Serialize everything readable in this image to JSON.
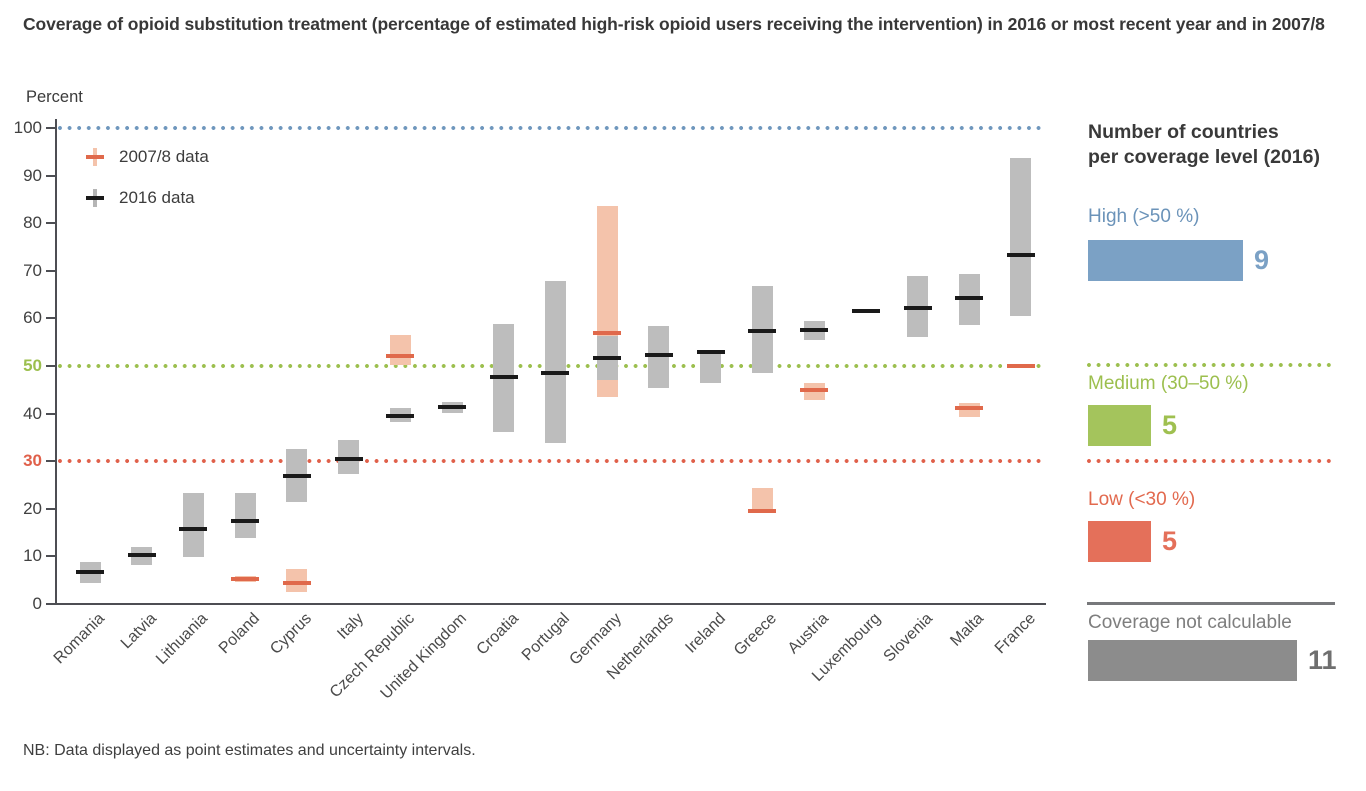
{
  "title": "Coverage of opioid substitution treatment (percentage of estimated high-risk opioid users receiving the intervention) in 2016 or most recent year and in 2007/8",
  "note": "NB: Data displayed as point estimates and uncertainty intervals.",
  "chart_data": {
    "type": "interval-point",
    "title": "Coverage of opioid substitution treatment (percentage of estimated high-risk opioid users receiving the intervention) in 2016 or most recent year and in 2007/8",
    "ylabel": "Percent",
    "xlabel": "",
    "ylim": [
      0,
      100
    ],
    "yticks": [
      0,
      10,
      20,
      30,
      40,
      50,
      60,
      70,
      80,
      90,
      100
    ],
    "ytick_special_colors": {
      "30": "#e0604a",
      "50": "#9cbf4e"
    },
    "grid": "off",
    "legend_position": "top-left",
    "reference_lines": [
      {
        "value": 100,
        "color": "#6f97bd",
        "style": "dotted"
      },
      {
        "value": 50,
        "color": "#9cbf4e",
        "style": "dotted"
      },
      {
        "value": 30,
        "color": "#e0604a",
        "style": "dotted"
      }
    ],
    "categories": [
      "Romania",
      "Latvia",
      "Lithuania",
      "Poland",
      "Cyprus",
      "Italy",
      "Czech Republic",
      "United Kingdom",
      "Croatia",
      "Portugal",
      "Germany",
      "Netherlands",
      "Ireland",
      "Greece",
      "Austria",
      "Luxembourg",
      "Slovenia",
      "Malta",
      "France"
    ],
    "series": [
      {
        "name": "2007/8 data",
        "interval_color": "#f4c3ab",
        "point_color": "#e0694b",
        "points": [
          null,
          null,
          null,
          {
            "est": 5.3,
            "low": 4.7,
            "high": 5.8
          },
          {
            "est": 4.5,
            "low": 2.6,
            "high": 7.4
          },
          null,
          {
            "est": 52.0,
            "low": 50.2,
            "high": 56.6
          },
          null,
          null,
          null,
          {
            "est": 56.9,
            "low": 43.4,
            "high": 83.6
          },
          null,
          null,
          {
            "est": 19.6,
            "low": 19.3,
            "high": 24.4
          },
          {
            "est": 44.9,
            "low": 42.9,
            "high": 46.4
          },
          null,
          null,
          {
            "est": 41.2,
            "low": 39.2,
            "high": 42.2
          },
          {
            "est": 49.9,
            "low": 49.5,
            "high": 50.3
          }
        ]
      },
      {
        "name": "2016 data",
        "interval_color": "#bdbdbd",
        "point_color": "#1a1a1a",
        "points": [
          {
            "est": 6.8,
            "low": 4.5,
            "high": 8.8
          },
          {
            "est": 10.2,
            "low": 8.1,
            "high": 11.9
          },
          {
            "est": 15.8,
            "low": 9.9,
            "high": 23.4
          },
          {
            "est": 17.4,
            "low": 13.8,
            "high": 23.4
          },
          {
            "est": 26.8,
            "low": 21.5,
            "high": 32.6
          },
          {
            "est": 30.4,
            "low": 27.4,
            "high": 34.4
          },
          {
            "est": 39.6,
            "low": 38.3,
            "high": 41.1
          },
          {
            "est": 41.4,
            "low": 40.2,
            "high": 42.5
          },
          {
            "est": 47.7,
            "low": 36.2,
            "high": 58.9
          },
          {
            "est": 48.6,
            "low": 33.8,
            "high": 67.9
          },
          {
            "est": 51.6,
            "low": 47.0,
            "high": 56.3
          },
          {
            "est": 52.4,
            "low": 45.3,
            "high": 58.3
          },
          {
            "est": 52.9,
            "low": 46.4,
            "high": 53.4
          },
          {
            "est": 57.3,
            "low": 48.6,
            "high": 66.9
          },
          {
            "est": 57.6,
            "low": 55.4,
            "high": 59.5
          },
          {
            "est": 61.5,
            "low": null,
            "high": null
          },
          {
            "est": 62.2,
            "low": 56.0,
            "high": 68.9
          },
          {
            "est": 64.3,
            "low": 58.6,
            "high": 69.3
          },
          {
            "est": 73.4,
            "low": 60.6,
            "high": 93.7
          }
        ]
      }
    ]
  },
  "side_panel": {
    "title_line1": "Number of countries",
    "title_line2": "per coverage level (2016)",
    "items": [
      {
        "label": "High (>50 %)",
        "count": 9,
        "bar_color": "#7ba1c5",
        "label_color": "#6b93b9",
        "count_color": "#7ba1c5",
        "divider_above": null
      },
      {
        "label": "Medium (30–50 %)",
        "count": 5,
        "bar_color": "#a4c45c",
        "label_color": "#9cbf4e",
        "count_color": "#9fc050",
        "divider_above": "dotted"
      },
      {
        "label": "Low (<30 %)",
        "count": 5,
        "bar_color": "#e4705a",
        "label_color": "#e2694e",
        "count_color": "#e4705a",
        "divider_above": "dotted"
      },
      {
        "label": "Coverage not calculable",
        "count": 11,
        "bar_color": "#8c8c8c",
        "label_color": "#7e7e7e",
        "count_color": "#6f6f6f",
        "divider_above": "solid"
      }
    ]
  }
}
